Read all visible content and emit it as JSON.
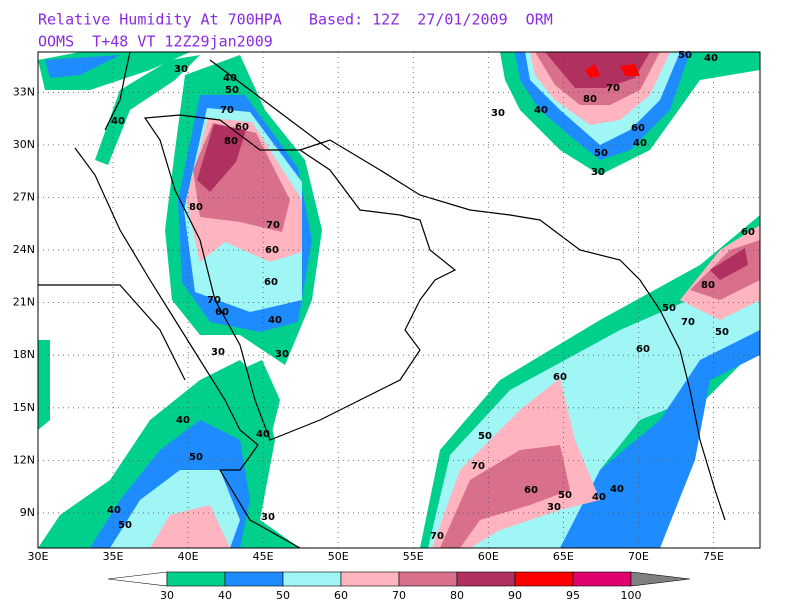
{
  "header": {
    "title": "Relative Humidity At 700HPA   Based: 12Z  27/01/2009  ORM",
    "subtitle": "OOMS  T+48 VT 12Z29jan2009"
  },
  "map": {
    "xlim": [
      30,
      78.1
    ],
    "ylim": [
      7,
      35.3
    ],
    "xticks": [
      {
        "value": 30,
        "label": "30E"
      },
      {
        "value": 35,
        "label": "35E"
      },
      {
        "value": 40,
        "label": "40E"
      },
      {
        "value": 45,
        "label": "45E"
      },
      {
        "value": 50,
        "label": "50E"
      },
      {
        "value": 55,
        "label": "55E"
      },
      {
        "value": 60,
        "label": "60E"
      },
      {
        "value": 65,
        "label": "65E"
      },
      {
        "value": 70,
        "label": "70E"
      },
      {
        "value": 75,
        "label": "75E"
      }
    ],
    "yticks": [
      {
        "value": 9,
        "label": "9N"
      },
      {
        "value": 12,
        "label": "12N"
      },
      {
        "value": 15,
        "label": "15N"
      },
      {
        "value": 18,
        "label": "18N"
      },
      {
        "value": 21,
        "label": "21N"
      },
      {
        "value": 24,
        "label": "24N"
      },
      {
        "value": 27,
        "label": "27N"
      },
      {
        "value": 30,
        "label": "30N"
      },
      {
        "value": 33,
        "label": "33N"
      }
    ],
    "grid": true,
    "contour_labels": [
      "30",
      "40",
      "50",
      "60",
      "70",
      "80",
      "80",
      "70",
      "60",
      "60",
      "70",
      "60",
      "40",
      "30",
      "30",
      "40",
      "40",
      "50",
      "40",
      "30",
      "40",
      "50",
      "40",
      "80",
      "70",
      "60",
      "50",
      "40",
      "30",
      "30",
      "50",
      "40",
      "60",
      "80",
      "50",
      "70",
      "50",
      "60",
      "60",
      "50",
      "70",
      "60",
      "50",
      "40",
      "40",
      "30",
      "70"
    ]
  },
  "colorbar": {
    "levels": [
      30,
      40,
      50,
      60,
      70,
      80,
      90,
      95,
      100
    ],
    "colors": [
      "#00d08c",
      "#1e8cff",
      "#a0f5f5",
      "#ffb4c0",
      "#d8708c",
      "#b03060",
      "#ff0000",
      "#e0006e"
    ],
    "under_color": "#ffffff",
    "over_color": "#808080"
  }
}
